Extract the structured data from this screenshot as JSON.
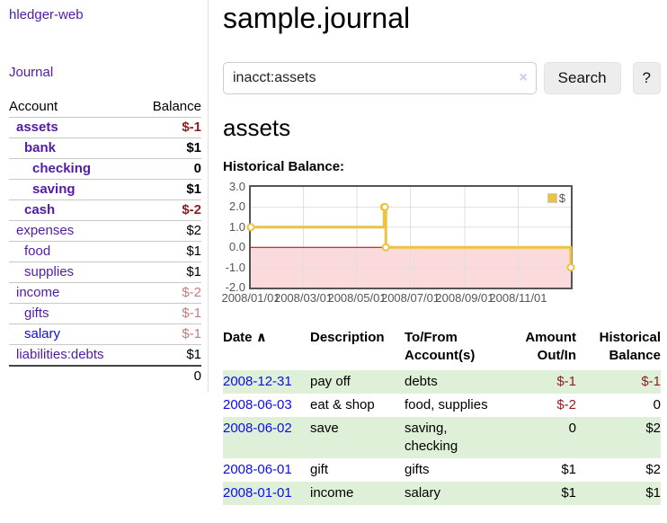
{
  "colors": {
    "link_purple": "#521ba5",
    "link_blue": "#0c0cee",
    "negative_strong": "#8f1d1d",
    "negative_muted": "#c17d7d",
    "row_highlight_green": "#dff0d8",
    "chart_line_gold": "#edc240",
    "chart_negative_region_pink": "#fadada",
    "chart_zero_line_red": "#aa0000",
    "button_gray": "#ededed"
  },
  "sidebar": {
    "brand": "hledger-web",
    "journal_link": "Journal",
    "accounts": {
      "header_account": "Account",
      "header_balance": "Balance",
      "rows": [
        {
          "name": "assets",
          "balance": "$-1",
          "indent": 1,
          "bold": true,
          "balance_color": "neg-strong"
        },
        {
          "name": "bank",
          "balance": "$1",
          "indent": 2,
          "bold": true
        },
        {
          "name": "checking",
          "balance": "0",
          "indent": 3,
          "bold": true
        },
        {
          "name": "saving",
          "balance": "$1",
          "indent": 3,
          "bold": true
        },
        {
          "name": "cash",
          "balance": "$-2",
          "indent": 2,
          "bold": true,
          "balance_color": "neg-strong"
        },
        {
          "name": "expenses",
          "balance": "$2",
          "indent": 1
        },
        {
          "name": "food",
          "balance": "$1",
          "indent": 2
        },
        {
          "name": "supplies",
          "balance": "$1",
          "indent": 2
        },
        {
          "name": "income",
          "balance": "$-2",
          "indent": 1,
          "balance_color": "neg-muted"
        },
        {
          "name": "gifts",
          "balance": "$-1",
          "indent": 2,
          "balance_color": "neg-muted"
        },
        {
          "name": "salary",
          "balance": "$-1",
          "indent": 2,
          "balance_color": "neg-muted",
          "link_color": "blue"
        },
        {
          "name": "liabilities:debts",
          "balance": "$1",
          "indent": 1
        }
      ],
      "total": "0"
    }
  },
  "main": {
    "title": "sample.journal",
    "search": {
      "value": "inacct:assets",
      "clear_icon": "×",
      "search_button": "Search",
      "help_button": "?"
    },
    "account_heading": "assets",
    "chart_heading": "Historical Balance:"
  },
  "chart_data": {
    "type": "line",
    "step": true,
    "title": "Historical Balance",
    "x_range": [
      "2008-01-01",
      "2008-12-31"
    ],
    "ylim": [
      -2,
      3
    ],
    "yticks": [
      "3.0",
      "2.0",
      "1.0",
      "0.0",
      "-1.0",
      "-2.0"
    ],
    "xticks": [
      "2008/01/01",
      "2008/03/01",
      "2008/05/01",
      "2008/07/01",
      "2008/09/01",
      "2008/11/01"
    ],
    "series": [
      {
        "name": "$",
        "points": [
          [
            "2008-01-01",
            1
          ],
          [
            "2008-06-01",
            2
          ],
          [
            "2008-06-02",
            2
          ],
          [
            "2008-06-03",
            0
          ],
          [
            "2008-12-31",
            -1
          ]
        ]
      }
    ],
    "legend": {
      "label": "$",
      "position": "top-right"
    },
    "grid": true,
    "negative_region_shaded": true
  },
  "register": {
    "headers": {
      "date": "Date",
      "description": "Description",
      "accounts": "To/From Account(s)",
      "amount": "Amount Out/In",
      "balance": "Historical Balance"
    },
    "sort_icon": "∧",
    "rows": [
      {
        "date": "2008-12-31",
        "description": "pay off",
        "accounts": "debts",
        "amount": "$-1",
        "amount_negative": true,
        "balance": "$-1",
        "balance_negative": true,
        "highlighted": true
      },
      {
        "date": "2008-06-03",
        "description": "eat & shop",
        "accounts": "food, supplies",
        "amount": "$-2",
        "amount_negative": true,
        "balance": "0",
        "balance_negative": false,
        "highlighted": false
      },
      {
        "date": "2008-06-02",
        "description": "save",
        "accounts": "saving, checking",
        "amount": "0",
        "amount_negative": false,
        "balance": "$2",
        "balance_negative": false,
        "highlighted": true
      },
      {
        "date": "2008-06-01",
        "description": "gift",
        "accounts": "gifts",
        "amount": "$1",
        "amount_negative": false,
        "balance": "$2",
        "balance_negative": false,
        "highlighted": false
      },
      {
        "date": "2008-01-01",
        "description": "income",
        "accounts": "salary",
        "amount": "$1",
        "amount_negative": false,
        "balance": "$1",
        "balance_negative": false,
        "highlighted": true
      }
    ]
  }
}
